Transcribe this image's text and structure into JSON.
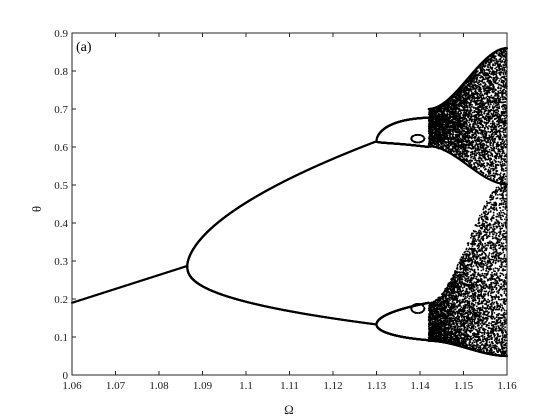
{
  "chart_data": {
    "type": "scatter",
    "panel_label": "(a)",
    "title": "",
    "xlabel": "Ω",
    "ylabel": "θ",
    "xlim": [
      1.06,
      1.16
    ],
    "ylim": [
      0,
      0.9
    ],
    "xticks": [
      "1.06",
      "1.07",
      "1.08",
      "1.09",
      "1.1",
      "1.11",
      "1.12",
      "1.13",
      "1.14",
      "1.15",
      "1.16"
    ],
    "yticks": [
      "0",
      "0.1",
      "0.2",
      "0.3",
      "0.4",
      "0.5",
      "0.6",
      "0.7",
      "0.8",
      "0.9"
    ],
    "grid": false,
    "legend": false,
    "marker_color": "#000000",
    "regimes": {
      "period_1": {
        "x_range": [
          1.06,
          1.0865
        ],
        "y_start": 0.19,
        "y_end": 0.287
      },
      "period_doubling_point": [
        1.0865,
        0.287
      ],
      "period_2": {
        "x_range": [
          1.0865,
          1.13
        ],
        "upper_branch_end": 0.615,
        "lower_branch_end": 0.133
      },
      "period_doubling_2": {
        "x": 1.13,
        "upper_loop_y_range": [
          0.6,
          0.7
        ],
        "lower_loop_y_range": [
          0.08,
          0.19
        ]
      },
      "chaotic_onset": 1.142,
      "chaotic_envelope_at_x_1_16": {
        "upper_band": [
          0.5,
          0.86
        ],
        "lower_band": [
          0.05,
          0.51
        ]
      }
    }
  }
}
